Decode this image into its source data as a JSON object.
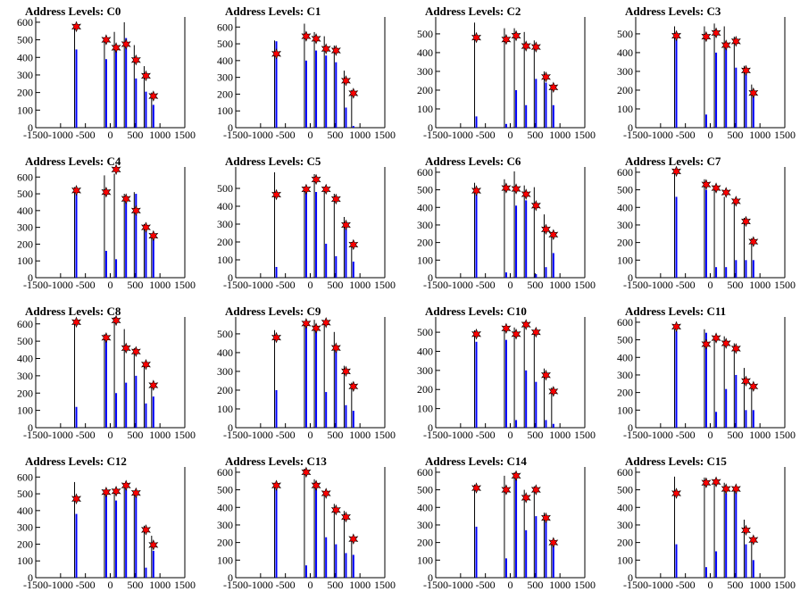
{
  "chart_data": [
    {
      "type": "bar",
      "title": "Address Levels: C0",
      "xlim": [
        -1500,
        1500
      ],
      "xticks": [
        -1500,
        -1000,
        -500,
        0,
        500,
        1000,
        1500
      ],
      "yticks": [
        0,
        100,
        200,
        300,
        400,
        500,
        600
      ],
      "ylim": [
        0,
        630
      ],
      "bar_x": [
        -700,
        -100,
        100,
        300,
        500,
        700,
        850
      ],
      "outline_values": [
        590,
        490,
        545,
        600,
        470,
        350,
        200
      ],
      "blue_values": [
        445,
        390,
        470,
        510,
        280,
        205,
        130
      ],
      "star_values": [
        575,
        500,
        455,
        475,
        385,
        295,
        180
      ]
    },
    {
      "type": "bar",
      "title": "Address Levels: C1",
      "xlim": [
        -1500,
        1500
      ],
      "xticks": [
        -1500,
        -1000,
        -500,
        0,
        500,
        1000,
        1500
      ],
      "yticks": [
        0,
        100,
        200,
        300,
        400,
        500,
        600
      ],
      "ylim": [
        0,
        660
      ],
      "bar_x": [
        -700,
        -100,
        100,
        300,
        500,
        700,
        850
      ],
      "outline_values": [
        520,
        620,
        570,
        545,
        490,
        340,
        225
      ],
      "blue_values": [
        515,
        400,
        460,
        430,
        390,
        120,
        10
      ],
      "star_values": [
        440,
        545,
        530,
        470,
        460,
        280,
        205
      ]
    },
    {
      "type": "bar",
      "title": "Address Levels: C2",
      "xlim": [
        -1500,
        1500
      ],
      "xticks": [
        -1500,
        -1000,
        -500,
        0,
        500,
        1000,
        1500
      ],
      "yticks": [
        0,
        100,
        200,
        300,
        400,
        500
      ],
      "ylim": [
        0,
        590
      ],
      "bar_x": [
        -700,
        -100,
        100,
        300,
        500,
        700,
        850
      ],
      "outline_values": [
        560,
        530,
        530,
        510,
        465,
        300,
        230
      ],
      "blue_values": [
        60,
        20,
        200,
        120,
        260,
        240,
        120
      ],
      "star_values": [
        480,
        470,
        490,
        435,
        430,
        270,
        215
      ]
    },
    {
      "type": "bar",
      "title": "Address Levels: C3",
      "xlim": [
        -1500,
        1500
      ],
      "xticks": [
        -1500,
        -1000,
        -500,
        0,
        500,
        1000,
        1500
      ],
      "yticks": [
        0,
        100,
        200,
        300,
        400,
        500
      ],
      "ylim": [
        0,
        590
      ],
      "bar_x": [
        -700,
        -100,
        100,
        300,
        500,
        700,
        850
      ],
      "outline_values": [
        540,
        540,
        555,
        540,
        485,
        330,
        230
      ],
      "blue_values": [
        490,
        70,
        400,
        450,
        320,
        310,
        180
      ],
      "star_values": [
        490,
        485,
        505,
        440,
        460,
        305,
        185
      ]
    },
    {
      "type": "bar",
      "title": "Address Levels: C4",
      "xlim": [
        -1500,
        1500
      ],
      "xticks": [
        -1500,
        -1000,
        -500,
        0,
        500,
        1000,
        1500
      ],
      "yticks": [
        0,
        100,
        200,
        300,
        400,
        500,
        600
      ],
      "ylim": [
        0,
        660
      ],
      "bar_x": [
        -700,
        -100,
        100,
        300,
        500,
        700,
        850
      ],
      "outline_values": [
        540,
        610,
        620,
        500,
        510,
        320,
        260
      ],
      "blue_values": [
        510,
        160,
        110,
        480,
        500,
        280,
        230
      ],
      "star_values": [
        520,
        510,
        645,
        470,
        400,
        300,
        250
      ]
    },
    {
      "type": "bar",
      "title": "Address Levels: C5",
      "xlim": [
        -1500,
        1500
      ],
      "xticks": [
        -1500,
        -1000,
        -500,
        0,
        500,
        1000,
        1500
      ],
      "yticks": [
        0,
        100,
        200,
        300,
        400,
        500
      ],
      "ylim": [
        0,
        620
      ],
      "bar_x": [
        -700,
        -100,
        100,
        300,
        500,
        700,
        850
      ],
      "outline_values": [
        590,
        510,
        580,
        510,
        470,
        340,
        200
      ],
      "blue_values": [
        60,
        500,
        480,
        190,
        120,
        300,
        90
      ],
      "star_values": [
        465,
        495,
        550,
        495,
        440,
        295,
        185
      ]
    },
    {
      "type": "bar",
      "title": "Address Levels: C6",
      "xlim": [
        -1500,
        1500
      ],
      "xticks": [
        -1500,
        -1000,
        -500,
        0,
        500,
        1000,
        1500
      ],
      "yticks": [
        0,
        100,
        200,
        300,
        400,
        500,
        600
      ],
      "ylim": [
        0,
        630
      ],
      "bar_x": [
        -700,
        -100,
        100,
        300,
        500,
        700,
        850
      ],
      "outline_values": [
        540,
        560,
        605,
        525,
        515,
        360,
        260
      ],
      "blue_values": [
        490,
        30,
        410,
        440,
        20,
        60,
        140
      ],
      "star_values": [
        495,
        510,
        505,
        475,
        410,
        275,
        245
      ]
    },
    {
      "type": "bar",
      "title": "Address Levels: C7",
      "xlim": [
        -1500,
        1500
      ],
      "xticks": [
        -1500,
        -1000,
        -500,
        0,
        500,
        1000,
        1500
      ],
      "yticks": [
        0,
        100,
        200,
        300,
        400,
        500,
        600
      ],
      "ylim": [
        0,
        630
      ],
      "bar_x": [
        -700,
        -100,
        100,
        300,
        500,
        700,
        850
      ],
      "outline_values": [
        610,
        560,
        525,
        460,
        430,
        340,
        225
      ],
      "blue_values": [
        460,
        500,
        60,
        60,
        100,
        100,
        100
      ],
      "star_values": [
        605,
        530,
        510,
        485,
        435,
        320,
        205
      ]
    },
    {
      "type": "bar",
      "title": "Address Levels: C8",
      "xlim": [
        -1500,
        1500
      ],
      "xticks": [
        -1500,
        -1000,
        -500,
        0,
        500,
        1000,
        1500
      ],
      "yticks": [
        0,
        100,
        200,
        300,
        400,
        500,
        600
      ],
      "ylim": [
        0,
        640
      ],
      "bar_x": [
        -700,
        -100,
        100,
        300,
        500,
        700,
        850
      ],
      "outline_values": [
        610,
        540,
        640,
        570,
        460,
        360,
        240
      ],
      "blue_values": [
        120,
        510,
        200,
        260,
        300,
        140,
        180
      ],
      "star_values": [
        610,
        520,
        620,
        460,
        440,
        365,
        245
      ]
    },
    {
      "type": "bar",
      "title": "Address Levels: C9",
      "xlim": [
        -1500,
        1500
      ],
      "xticks": [
        -1500,
        -1000,
        -500,
        0,
        500,
        1000,
        1500
      ],
      "yticks": [
        0,
        100,
        200,
        300,
        400,
        500
      ],
      "ylim": [
        0,
        590
      ],
      "bar_x": [
        -700,
        -100,
        100,
        300,
        500,
        700,
        850
      ],
      "outline_values": [
        520,
        560,
        575,
        570,
        510,
        330,
        240
      ],
      "blue_values": [
        200,
        540,
        520,
        190,
        420,
        120,
        90
      ],
      "star_values": [
        480,
        555,
        530,
        560,
        425,
        300,
        220
      ]
    },
    {
      "type": "bar",
      "title": "Address Levels: C10",
      "xlim": [
        -1500,
        1500
      ],
      "xticks": [
        -1500,
        -1000,
        -500,
        0,
        500,
        1000,
        1500
      ],
      "yticks": [
        0,
        100,
        200,
        300,
        400,
        500
      ],
      "ylim": [
        0,
        580
      ],
      "bar_x": [
        -700,
        -100,
        100,
        300,
        500,
        700,
        850
      ],
      "outline_values": [
        510,
        530,
        525,
        555,
        510,
        310,
        210
      ],
      "blue_values": [
        450,
        460,
        40,
        300,
        240,
        40,
        20
      ],
      "star_values": [
        490,
        520,
        490,
        540,
        500,
        275,
        190
      ]
    },
    {
      "type": "bar",
      "title": "Address Levels: C11",
      "xlim": [
        -1500,
        1500
      ],
      "xticks": [
        -1500,
        -1000,
        -500,
        0,
        500,
        1000,
        1500
      ],
      "yticks": [
        0,
        100,
        200,
        300,
        400,
        500,
        600
      ],
      "ylim": [
        0,
        630
      ],
      "bar_x": [
        -700,
        -100,
        100,
        300,
        500,
        700,
        850
      ],
      "outline_values": [
        560,
        560,
        520,
        520,
        480,
        340,
        230
      ],
      "blue_values": [
        550,
        540,
        90,
        220,
        300,
        100,
        100
      ],
      "star_values": [
        575,
        475,
        510,
        480,
        450,
        265,
        235
      ]
    },
    {
      "type": "bar",
      "title": "Address Levels: C12",
      "xlim": [
        -1500,
        1500
      ],
      "xticks": [
        -1500,
        -1000,
        -500,
        0,
        500,
        1000,
        1500
      ],
      "yticks": [
        0,
        100,
        200,
        300,
        400,
        500,
        600
      ],
      "ylim": [
        0,
        660
      ],
      "bar_x": [
        -700,
        -100,
        100,
        300,
        500,
        700,
        850
      ],
      "outline_values": [
        570,
        510,
        520,
        560,
        520,
        310,
        250
      ],
      "blue_values": [
        380,
        500,
        460,
        530,
        500,
        60,
        160
      ],
      "star_values": [
        470,
        510,
        515,
        550,
        505,
        285,
        195
      ]
    },
    {
      "type": "bar",
      "title": "Address Levels: C13",
      "xlim": [
        -1500,
        1500
      ],
      "xticks": [
        -1500,
        -1000,
        -500,
        0,
        500,
        1000,
        1500
      ],
      "yticks": [
        0,
        100,
        200,
        300,
        400,
        500,
        600
      ],
      "ylim": [
        0,
        630
      ],
      "bar_x": [
        -700,
        -100,
        100,
        300,
        500,
        700,
        850
      ],
      "outline_values": [
        540,
        620,
        560,
        480,
        420,
        380,
        230
      ],
      "blue_values": [
        520,
        70,
        540,
        230,
        190,
        140,
        130
      ],
      "star_values": [
        525,
        600,
        525,
        480,
        385,
        345,
        220
      ]
    },
    {
      "type": "bar",
      "title": "Address Levels: C14",
      "xlim": [
        -1500,
        1500
      ],
      "xticks": [
        -1500,
        -1000,
        -500,
        0,
        500,
        1000,
        1500
      ],
      "yticks": [
        0,
        100,
        200,
        300,
        400,
        500,
        600
      ],
      "ylim": [
        0,
        630
      ],
      "bar_x": [
        -700,
        -100,
        100,
        300,
        500,
        700,
        850
      ],
      "outline_values": [
        530,
        580,
        600,
        500,
        520,
        370,
        210
      ],
      "blue_values": [
        290,
        110,
        560,
        270,
        350,
        330,
        200
      ],
      "star_values": [
        510,
        500,
        580,
        455,
        500,
        340,
        200
      ]
    },
    {
      "type": "bar",
      "title": "Address Levels: C15",
      "xlim": [
        -1500,
        1500
      ],
      "xticks": [
        -1500,
        -1000,
        -500,
        0,
        500,
        1000,
        1500
      ],
      "yticks": [
        0,
        100,
        200,
        300,
        400,
        500,
        600
      ],
      "ylim": [
        0,
        630
      ],
      "bar_x": [
        -700,
        -100,
        100,
        300,
        500,
        700,
        850
      ],
      "outline_values": [
        575,
        570,
        560,
        540,
        500,
        330,
        230
      ],
      "blue_values": [
        190,
        60,
        150,
        480,
        500,
        190,
        100
      ],
      "star_values": [
        480,
        540,
        545,
        505,
        505,
        270,
        215
      ]
    }
  ],
  "colors": {
    "blue_bar": "#0000ff",
    "outline": "#000000",
    "star_fill": "#ff0000",
    "star_stroke": "#000000",
    "background": "#ffffff"
  }
}
